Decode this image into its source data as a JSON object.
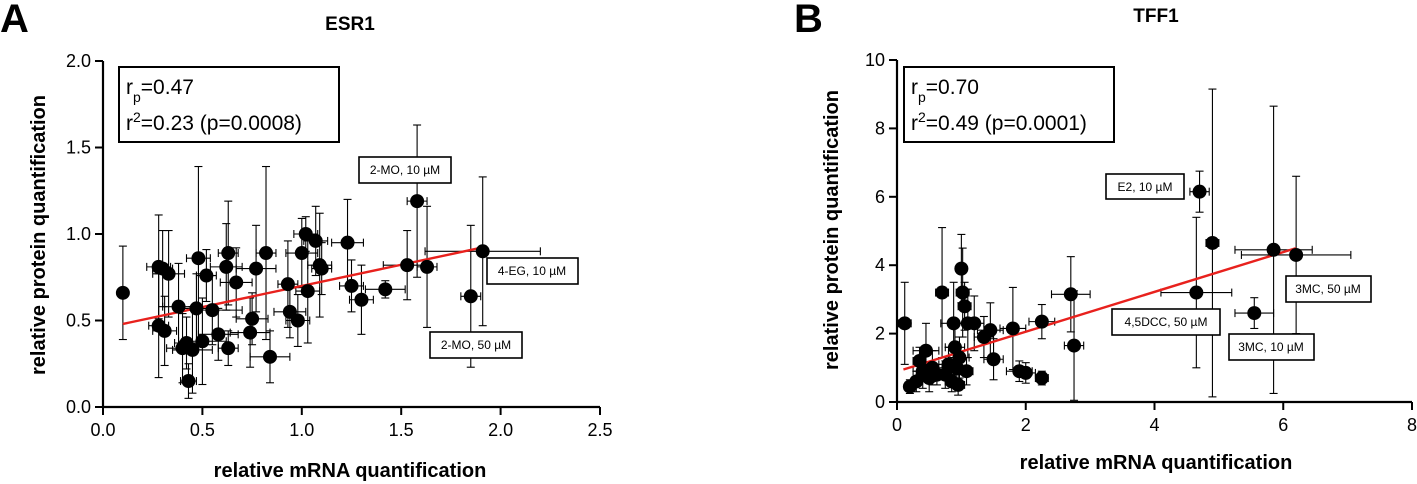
{
  "figure": {
    "panels": [
      "A",
      "B"
    ]
  },
  "chart_data": [
    {
      "type": "scatter",
      "panel": "A",
      "title": "ESR1",
      "xlabel": "relative mRNA quantification",
      "ylabel": "relative protein quantification",
      "xlim": [
        0.0,
        2.5
      ],
      "ylim": [
        0.0,
        2.0
      ],
      "xticks": [
        "0.0",
        "0.5",
        "1.0",
        "1.5",
        "2.0",
        "2.5"
      ],
      "yticks": [
        "0.0",
        "0.5",
        "1.0",
        "1.5",
        "2.0"
      ],
      "stats": {
        "rp_label": "r",
        "rp_sub": "p",
        "rp_value": "=0.47",
        "r2_label": "r",
        "r2_sup": "2",
        "r2_value": "=0.23 (p=0.0008)"
      },
      "regression": {
        "x1": 0.1,
        "y1": 0.48,
        "x2": 1.9,
        "y2": 0.92,
        "color": "#e8211d"
      },
      "points": [
        {
          "x": 0.1,
          "y": 0.66,
          "xe": 0.0,
          "ye": 0.27
        },
        {
          "x": 0.28,
          "y": 0.81,
          "xe": 0.06,
          "ye": 0.3
        },
        {
          "x": 0.3,
          "y": 0.8,
          "xe": 0.05,
          "ye": 0.22
        },
        {
          "x": 0.33,
          "y": 0.77,
          "xe": 0.08,
          "ye": 0.25
        },
        {
          "x": 0.28,
          "y": 0.47,
          "xe": 0.05,
          "ye": 0.3
        },
        {
          "x": 0.31,
          "y": 0.44,
          "xe": 0.06,
          "ye": 0.2
        },
        {
          "x": 0.38,
          "y": 0.58,
          "xe": 0.08,
          "ye": 0.25
        },
        {
          "x": 0.4,
          "y": 0.34,
          "xe": 0.08,
          "ye": 0.2
        },
        {
          "x": 0.42,
          "y": 0.37,
          "xe": 0.06,
          "ye": 0.15
        },
        {
          "x": 0.43,
          "y": 0.15,
          "xe": 0.04,
          "ye": 0.1
        },
        {
          "x": 0.45,
          "y": 0.33,
          "xe": 0.1,
          "ye": 0.25
        },
        {
          "x": 0.47,
          "y": 0.57,
          "xe": 0.08,
          "ye": 0.2
        },
        {
          "x": 0.48,
          "y": 0.86,
          "xe": 0.06,
          "ye": 0.53
        },
        {
          "x": 0.5,
          "y": 0.38,
          "xe": 0.12,
          "ye": 0.25
        },
        {
          "x": 0.52,
          "y": 0.76,
          "xe": 0.05,
          "ye": 0.15
        },
        {
          "x": 0.55,
          "y": 0.56,
          "xe": 0.15,
          "ye": 0.2
        },
        {
          "x": 0.58,
          "y": 0.42,
          "xe": 0.1,
          "ye": 0.15
        },
        {
          "x": 0.62,
          "y": 0.81,
          "xe": 0.08,
          "ye": 0.25
        },
        {
          "x": 0.63,
          "y": 0.89,
          "xe": 0.05,
          "ye": 0.3
        },
        {
          "x": 0.63,
          "y": 0.34,
          "xe": 0.05,
          "ye": 0.1
        },
        {
          "x": 0.67,
          "y": 0.72,
          "xe": 0.08,
          "ye": 0.2
        },
        {
          "x": 0.74,
          "y": 0.43,
          "xe": 0.1,
          "ye": 0.2
        },
        {
          "x": 0.75,
          "y": 0.51,
          "xe": 0.08,
          "ye": 0.15
        },
        {
          "x": 0.77,
          "y": 0.8,
          "xe": 0.1,
          "ye": 0.25
        },
        {
          "x": 0.82,
          "y": 0.89,
          "xe": 0.05,
          "ye": 0.5
        },
        {
          "x": 0.84,
          "y": 0.29,
          "xe": 0.1,
          "ye": 0.15
        },
        {
          "x": 0.93,
          "y": 0.71,
          "xe": 0.05,
          "ye": 0.25
        },
        {
          "x": 0.94,
          "y": 0.55,
          "xe": 0.08,
          "ye": 0.15
        },
        {
          "x": 0.98,
          "y": 0.5,
          "xe": 0.06,
          "ye": 0.15
        },
        {
          "x": 1.0,
          "y": 0.89,
          "xe": 0.08,
          "ye": 0.2
        },
        {
          "x": 1.02,
          "y": 1.0,
          "xe": 0.06,
          "ye": 0.1
        },
        {
          "x": 1.03,
          "y": 0.67,
          "xe": 0.06,
          "ye": 0.3
        },
        {
          "x": 1.07,
          "y": 0.96,
          "xe": 0.06,
          "ye": 0.2
        },
        {
          "x": 1.09,
          "y": 0.82,
          "xe": 0.06,
          "ye": 0.3
        },
        {
          "x": 1.1,
          "y": 0.8,
          "xe": 0.05,
          "ye": 0.15
        },
        {
          "x": 1.23,
          "y": 0.95,
          "xe": 0.08,
          "ye": 0.25
        },
        {
          "x": 1.25,
          "y": 0.7,
          "xe": 0.06,
          "ye": 0.15
        },
        {
          "x": 1.3,
          "y": 0.62,
          "xe": 0.06,
          "ye": 0.2
        },
        {
          "x": 1.42,
          "y": 0.68,
          "xe": 0.1,
          "ye": 0.05
        },
        {
          "x": 1.53,
          "y": 0.82,
          "xe": 0.12,
          "ye": 0.2
        },
        {
          "x": 1.58,
          "y": 1.19,
          "xe": 0.05,
          "ye": 0.44
        },
        {
          "x": 1.63,
          "y": 0.81,
          "xe": 0.05,
          "ye": 0.35
        },
        {
          "x": 1.85,
          "y": 0.64,
          "xe": 0.05,
          "ye": 0.41
        },
        {
          "x": 1.91,
          "y": 0.9,
          "xe": 0.29,
          "ye": 0.43
        }
      ],
      "annotations": [
        {
          "label": "2-MO, 10 µM"
        },
        {
          "label": "4-EG, 10 µM"
        },
        {
          "label": "2-MO, 50 µM"
        }
      ]
    },
    {
      "type": "scatter",
      "panel": "B",
      "title": "TFF1",
      "xlabel": "relative mRNA quantification",
      "ylabel": "relative protein quantification",
      "xlim": [
        0,
        8
      ],
      "ylim": [
        0,
        10
      ],
      "xticks": [
        "0",
        "2",
        "4",
        "6",
        "8"
      ],
      "yticks": [
        "0",
        "2",
        "4",
        "6",
        "8",
        "10"
      ],
      "stats": {
        "rp_label": "r",
        "rp_sub": "p",
        "rp_value": "=0.70",
        "r2_label": "r",
        "r2_sup": "2",
        "r2_value": "=0.49 (p=0.0001)"
      },
      "regression": {
        "x1": 0.1,
        "y1": 0.95,
        "x2": 6.2,
        "y2": 4.5,
        "color": "#e8211d"
      },
      "points": [
        {
          "x": 0.12,
          "y": 2.3,
          "xe": 0.1,
          "ye": 1.2
        },
        {
          "x": 0.2,
          "y": 0.45,
          "xe": 0.05,
          "ye": 0.2
        },
        {
          "x": 0.3,
          "y": 0.6,
          "xe": 0.05,
          "ye": 0.3
        },
        {
          "x": 0.35,
          "y": 1.2,
          "xe": 0.1,
          "ye": 0.4
        },
        {
          "x": 0.4,
          "y": 0.9,
          "xe": 0.15,
          "ye": 0.5
        },
        {
          "x": 0.45,
          "y": 1.5,
          "xe": 0.2,
          "ye": 0.8
        },
        {
          "x": 0.5,
          "y": 0.7,
          "xe": 0.1,
          "ye": 0.4
        },
        {
          "x": 0.55,
          "y": 1.0,
          "xe": 0.15,
          "ye": 0.5
        },
        {
          "x": 0.62,
          "y": 0.8,
          "xe": 0.1,
          "ye": 0.3
        },
        {
          "x": 0.7,
          "y": 3.2,
          "xe": 0.1,
          "ye": 1.9
        },
        {
          "x": 0.75,
          "y": 0.8,
          "xe": 0.15,
          "ye": 0.4
        },
        {
          "x": 0.8,
          "y": 1.1,
          "xe": 0.15,
          "ye": 0.5
        },
        {
          "x": 0.85,
          "y": 0.6,
          "xe": 0.1,
          "ye": 0.3
        },
        {
          "x": 0.88,
          "y": 2.3,
          "xe": 0.2,
          "ye": 1.2
        },
        {
          "x": 0.9,
          "y": 1.6,
          "xe": 0.15,
          "ye": 0.8
        },
        {
          "x": 0.92,
          "y": 1.0,
          "xe": 0.1,
          "ye": 0.5
        },
        {
          "x": 0.95,
          "y": 0.5,
          "xe": 0.1,
          "ye": 0.3
        },
        {
          "x": 0.97,
          "y": 1.3,
          "xe": 0.15,
          "ye": 0.6
        },
        {
          "x": 1.0,
          "y": 3.9,
          "xe": 0.05,
          "ye": 1.0
        },
        {
          "x": 1.02,
          "y": 3.2,
          "xe": 0.1,
          "ye": 1.3
        },
        {
          "x": 1.05,
          "y": 2.8,
          "xe": 0.1,
          "ye": 0.7
        },
        {
          "x": 1.08,
          "y": 0.9,
          "xe": 0.1,
          "ye": 0.4
        },
        {
          "x": 1.1,
          "y": 2.3,
          "xe": 0.15,
          "ye": 1.0
        },
        {
          "x": 1.2,
          "y": 2.3,
          "xe": 0.15,
          "ye": 0.8
        },
        {
          "x": 1.35,
          "y": 1.9,
          "xe": 0.15,
          "ye": 0.6
        },
        {
          "x": 1.45,
          "y": 2.1,
          "xe": 0.2,
          "ye": 0.8
        },
        {
          "x": 1.5,
          "y": 1.25,
          "xe": 0.15,
          "ye": 0.6
        },
        {
          "x": 1.8,
          "y": 2.15,
          "xe": 0.2,
          "ye": 1.2
        },
        {
          "x": 1.9,
          "y": 0.9,
          "xe": 0.2,
          "ye": 0.3
        },
        {
          "x": 2.0,
          "y": 0.85,
          "xe": 0.15,
          "ye": 0.3
        },
        {
          "x": 2.25,
          "y": 2.35,
          "xe": 0.2,
          "ye": 0.5
        },
        {
          "x": 2.25,
          "y": 0.7,
          "xe": 0.1,
          "ye": 0.2
        },
        {
          "x": 2.7,
          "y": 3.15,
          "xe": 0.3,
          "ye": 1.1
        },
        {
          "x": 2.75,
          "y": 1.65,
          "xe": 0.15,
          "ye": 1.6
        },
        {
          "x": 4.65,
          "y": 3.2,
          "xe": 0.55,
          "ye": 2.2
        },
        {
          "x": 4.7,
          "y": 6.15,
          "xe": 0.15,
          "ye": 0.6
        },
        {
          "x": 4.9,
          "y": 4.65,
          "xe": 0.1,
          "ye": 4.5
        },
        {
          "x": 5.55,
          "y": 2.6,
          "xe": 0.3,
          "ye": 0.45
        },
        {
          "x": 5.85,
          "y": 4.45,
          "xe": 0.6,
          "ye": 4.2
        },
        {
          "x": 6.2,
          "y": 4.3,
          "xe": 0.85,
          "ye": 2.3
        }
      ],
      "annotations": [
        {
          "label": "E2, 10 µM"
        },
        {
          "label": "4,5DCC, 50 µM"
        },
        {
          "label": "3MC, 50 µM"
        },
        {
          "label": "3MC, 10 µM"
        }
      ]
    }
  ]
}
